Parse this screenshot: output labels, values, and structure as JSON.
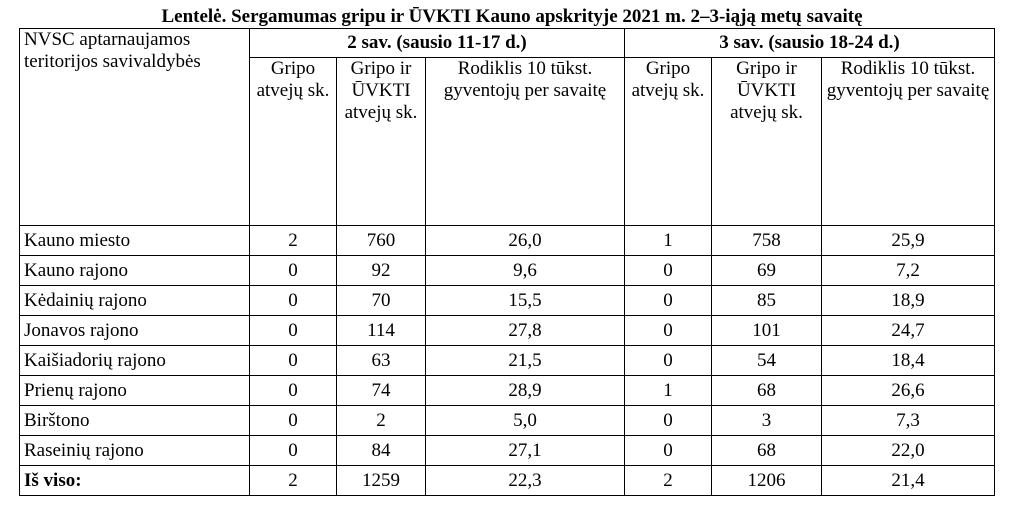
{
  "title": "Lentelė. Sergamumas gripu ir ŪVKTI Kauno apskrityje 2021 m. 2–3-iąją metų savaitę",
  "header": {
    "first_col": "NVSC aptarnaujamos teritorijos savivaldybės",
    "week2": "2 sav. (sausio 11-17 d.)",
    "week3": "3 sav. (sausio 18-24 d.)",
    "col_flu": "Gripo atvejų sk.",
    "col_flu_ari": "Gripo ir ŪVKTI atvejų sk.",
    "col_rate": "Rodiklis 10 tūkst. gyventojų per savaitę"
  },
  "rows": [
    {
      "name": "Kauno miesto",
      "w2_flu": "2",
      "w2_total": "760",
      "w2_rate": "26,0",
      "w3_flu": "1",
      "w3_total": "758",
      "w3_rate": "25,9"
    },
    {
      "name": "Kauno rajono",
      "w2_flu": "0",
      "w2_total": "92",
      "w2_rate": "9,6",
      "w3_flu": "0",
      "w3_total": "69",
      "w3_rate": "7,2"
    },
    {
      "name": "Kėdainių rajono",
      "w2_flu": "0",
      "w2_total": "70",
      "w2_rate": "15,5",
      "w3_flu": "0",
      "w3_total": "85",
      "w3_rate": "18,9"
    },
    {
      "name": "Jonavos rajono",
      "w2_flu": "0",
      "w2_total": "114",
      "w2_rate": "27,8",
      "w3_flu": "0",
      "w3_total": "101",
      "w3_rate": "24,7"
    },
    {
      "name": "Kaišiadorių rajono",
      "w2_flu": "0",
      "w2_total": "63",
      "w2_rate": "21,5",
      "w3_flu": "0",
      "w3_total": "54",
      "w3_rate": "18,4"
    },
    {
      "name": "Prienų rajono",
      "w2_flu": "0",
      "w2_total": "74",
      "w2_rate": "28,9",
      "w3_flu": "1",
      "w3_total": "68",
      "w3_rate": "26,6"
    },
    {
      "name": "Birštono",
      "w2_flu": "0",
      "w2_total": "2",
      "w2_rate": "5,0",
      "w3_flu": "0",
      "w3_total": "3",
      "w3_rate": "7,3"
    },
    {
      "name": "Raseinių rajono",
      "w2_flu": "0",
      "w2_total": "84",
      "w2_rate": "27,1",
      "w3_flu": "0",
      "w3_total": "68",
      "w3_rate": "22,0"
    }
  ],
  "total": {
    "name": "Iš viso:",
    "w2_flu": "2",
    "w2_total": "1259",
    "w2_rate": "22,3",
    "w3_flu": "2",
    "w3_total": "1206",
    "w3_rate": "21,4"
  }
}
